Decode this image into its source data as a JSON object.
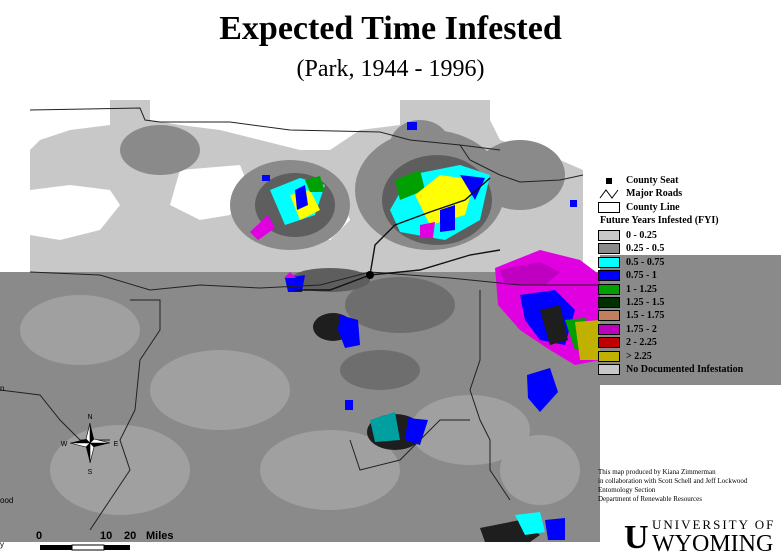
{
  "title": "Expected Time Infested",
  "subtitle": "(Park, 1944 - 1996)",
  "legend": {
    "county_seat": "County Seat",
    "major_roads": "Major Roads",
    "county_line": "County Line",
    "fyi_title": "Future Years Infested (FYI)",
    "classes": [
      {
        "label": "0 - 0.25",
        "color": "#c8c8c8"
      },
      {
        "label": "0.25 - 0.5",
        "color": "#8a8a8a"
      },
      {
        "label": "0.5 - 0.75",
        "color": "#00ffff"
      },
      {
        "label": "0.75 - 1",
        "color": "#0000ff"
      },
      {
        "label": "1 - 1.25",
        "color": "#00a000"
      },
      {
        "label": "1.25 - 1.5",
        "color": "#003000"
      },
      {
        "label": "1.5 - 1.75",
        "color": "#c08060"
      },
      {
        "label": "1.75 - 2",
        "color": "#c000c0"
      },
      {
        "label": "2 - 2.25",
        "color": "#c00000"
      },
      {
        "label": "> 2.25",
        "color": "#c0b000"
      },
      {
        "label": "No Documented Infestation",
        "color": "#c8c8c8"
      }
    ]
  },
  "credits": [
    "This map produced by Kiana Zimmerman",
    "in collaboration with Scott Schell and Jeff Lockwood",
    "Entomology Section",
    "Department of Renewable Resources"
  ],
  "university": {
    "line1": "UNIVERSITY OF",
    "line2": "WYOMING",
    "logo": "U"
  },
  "scale_bar": {
    "ticks": [
      "0",
      "10",
      "20"
    ],
    "unit": "Miles"
  },
  "north_arrow": {
    "n": "N",
    "s": "S",
    "e": "E",
    "w": "W"
  },
  "colors": {
    "light": "#c8c8c8",
    "mid": "#8a8a8a",
    "dark": "#5e5e5e",
    "cyan": "#00ffff",
    "blue": "#0000ff",
    "green": "#00a000",
    "darkgreen": "#003000",
    "magenta": "#c000c0",
    "purple": "#e000e0",
    "yellow": "#ffff00",
    "olive": "#c0b000",
    "black": "#1e1e1e"
  },
  "edge_labels": [
    "n",
    "ood",
    "y"
  ]
}
